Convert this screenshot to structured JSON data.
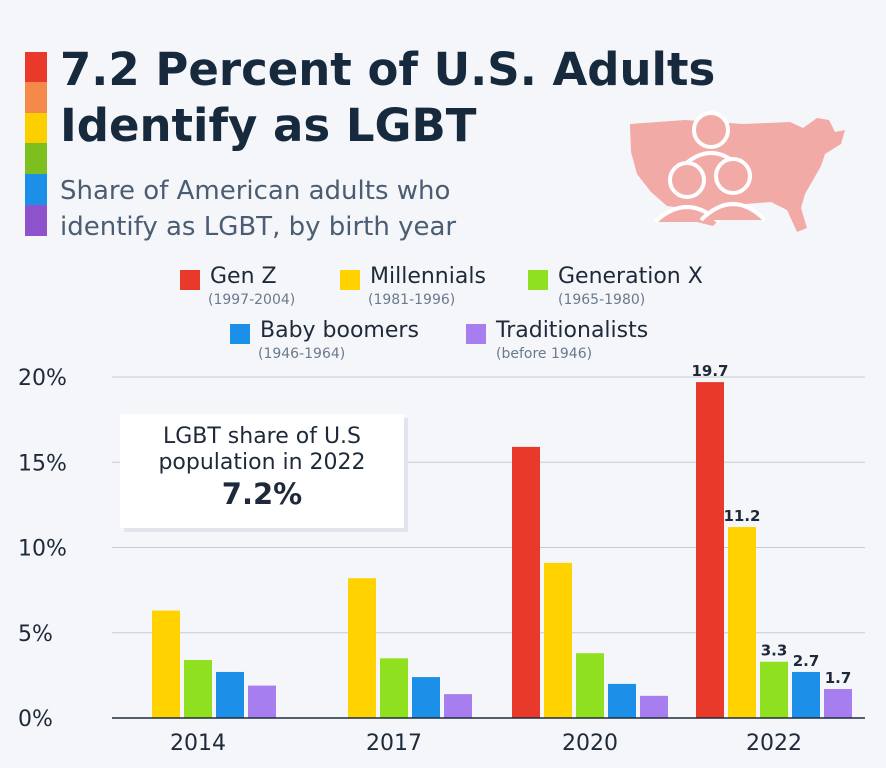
{
  "title_lines": [
    "7.2 Percent of U.S. Adults",
    "Identify as LGBT"
  ],
  "subtitle_lines": [
    "Share of American adults who",
    "identify as LGBT, by birth year"
  ],
  "stripe_colors": [
    "#e8392b",
    "#f5894a",
    "#fcd000",
    "#7cbf1e",
    "#1c8fe8",
    "#8e52cc"
  ],
  "map_icon": "us-map-people-icon",
  "legend": [
    {
      "name": "Gen Z",
      "range": "(1997-2004)",
      "color": "#e8392b"
    },
    {
      "name": "Millennials",
      "range": "(1981-1996)",
      "color": "#ffd200"
    },
    {
      "name": "Generation X",
      "range": "(1965-1980)",
      "color": "#8fe01e"
    },
    {
      "name": "Baby boomers",
      "range": "(1946-1964)",
      "color": "#1c8fe8"
    },
    {
      "name": "Traditionalists",
      "range": "(before 1946)",
      "color": "#a77ef0"
    }
  ],
  "callout": {
    "line1": "LGBT share of U.S",
    "line2": "population in 2022",
    "value": "7.2%"
  },
  "chart_data": {
    "type": "bar",
    "categories": [
      "2014",
      "2017",
      "2020",
      "2022"
    ],
    "series": [
      {
        "name": "Gen Z",
        "color": "#e8392b",
        "values": [
          null,
          null,
          15.9,
          19.7
        ]
      },
      {
        "name": "Millennials",
        "color": "#ffd200",
        "values": [
          6.3,
          8.2,
          9.1,
          11.2
        ]
      },
      {
        "name": "Generation X",
        "color": "#8fe01e",
        "values": [
          3.4,
          3.5,
          3.8,
          3.3
        ]
      },
      {
        "name": "Baby boomers",
        "color": "#1c8fe8",
        "values": [
          2.7,
          2.4,
          2.0,
          2.7
        ]
      },
      {
        "name": "Traditionalists",
        "color": "#a77ef0",
        "values": [
          1.9,
          1.4,
          1.3,
          1.7
        ]
      }
    ],
    "data_labels": {
      "category": "2022",
      "labels": [
        "19.7",
        "11.2",
        "3.3",
        "2.7",
        "1.7"
      ]
    },
    "ylim": [
      0,
      20
    ],
    "yticks": [
      0,
      5,
      10,
      15,
      20
    ],
    "ytick_labels": [
      "0%",
      "5%",
      "10%",
      "15%",
      "20%"
    ],
    "grid": true,
    "xlabel": "",
    "ylabel": ""
  }
}
